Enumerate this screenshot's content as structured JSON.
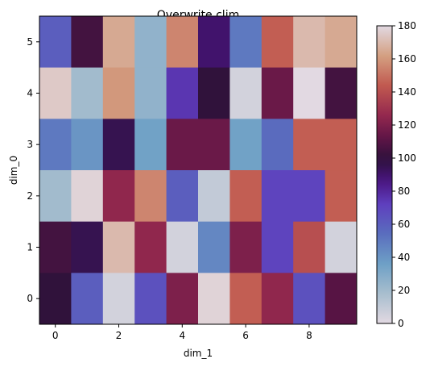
{
  "chart_data": {
    "type": "heatmap",
    "title": "Overwrite clim",
    "xlabel": "dim_1",
    "ylabel": "dim_0",
    "x_ticks": [
      0,
      2,
      4,
      6,
      8
    ],
    "y_ticks": [
      0,
      1,
      2,
      3,
      4,
      5
    ],
    "clim": [
      0,
      180
    ],
    "colorbar_ticks": [
      0,
      20,
      40,
      60,
      80,
      100,
      120,
      140,
      160,
      180
    ],
    "colormap": "twilight_shifted",
    "rows": [
      {
        "dim_0": 5,
        "values": [
          60,
          105,
          165,
          25,
          155,
          90,
          50,
          145,
          170,
          165
        ]
      },
      {
        "dim_0": 4,
        "values": [
          175,
          20,
          160,
          25,
          75,
          100,
          5,
          115,
          180,
          105
        ]
      },
      {
        "dim_0": 3,
        "values": [
          50,
          40,
          95,
          35,
          115,
          115,
          35,
          55,
          145,
          145
        ]
      },
      {
        "dim_0": 2,
        "values": [
          20,
          178,
          125,
          155,
          60,
          10,
          145,
          70,
          70,
          145
        ]
      },
      {
        "dim_0": 1,
        "values": [
          105,
          95,
          170,
          125,
          5,
          45,
          120,
          70,
          140,
          5
        ]
      },
      {
        "dim_0": 0,
        "values": [
          100,
          60,
          5,
          65,
          120,
          178,
          145,
          125,
          65,
          110
        ]
      }
    ]
  }
}
